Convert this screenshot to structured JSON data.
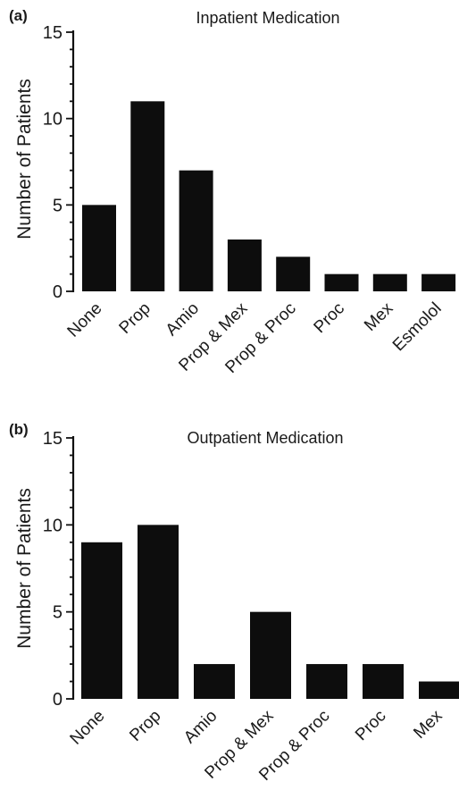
{
  "chart_data": [
    {
      "type": "bar",
      "panel_label": "(a)",
      "title": "Inpatient Medication",
      "xlabel": "",
      "ylabel": "Number of Patients",
      "ylim": [
        0,
        15
      ],
      "yticks": [
        "0",
        "5",
        "10",
        "15"
      ],
      "categories": [
        "None",
        "Prop",
        "Amio",
        "Prop & Mex",
        "Prop & Proc",
        "Proc",
        "Mex",
        "Esmolol"
      ],
      "values": [
        5,
        11,
        7,
        3,
        2,
        1,
        1,
        1
      ],
      "bar_color": "#0d0d0d",
      "grid": false
    },
    {
      "type": "bar",
      "panel_label": "(b)",
      "title": "Outpatient Medication",
      "xlabel": "",
      "ylabel": "Number of Patients",
      "ylim": [
        0,
        15
      ],
      "yticks": [
        "0",
        "5",
        "10",
        "15"
      ],
      "categories": [
        "None",
        "Prop",
        "Amio",
        "Prop & Mex",
        "Prop & Proc",
        "Proc",
        "Mex"
      ],
      "values": [
        9,
        10,
        2,
        5,
        2,
        2,
        1
      ],
      "bar_color": "#0d0d0d",
      "grid": false
    }
  ]
}
